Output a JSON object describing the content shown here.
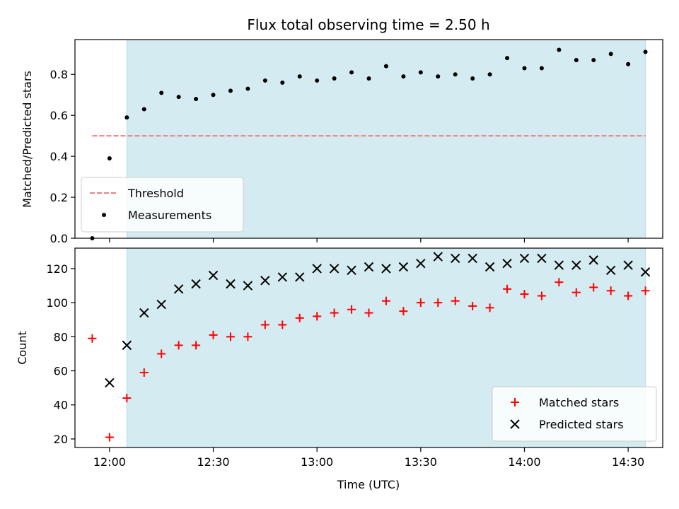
{
  "chart_data": {
    "title": "Flux total observing time = 2.50 h",
    "xlabel": "Time (UTC)",
    "x_type": "time",
    "xlim": [
      "11:50",
      "14:40"
    ],
    "x_ticks": [
      "12:00",
      "12:30",
      "13:00",
      "13:30",
      "14:00",
      "14:30"
    ],
    "observing_window": {
      "start": "12:05",
      "end": "14:35",
      "color": "#d4ebf1"
    },
    "panels": [
      {
        "type": "scatter",
        "ylabel": "Matched/Predicted stars",
        "ylim": [
          0,
          0.97
        ],
        "y_ticks": [
          0.0,
          0.2,
          0.4,
          0.6,
          0.8
        ],
        "y_tick_labels": [
          "0.0",
          "0.2",
          "0.4",
          "0.6",
          "0.8"
        ],
        "legend_position": "lower-left",
        "threshold": {
          "name": "Threshold",
          "value": 0.5,
          "x_range": [
            "11:55",
            "14:35"
          ],
          "color": "#f08080",
          "style": "dashed"
        },
        "series": [
          {
            "name": "Measurements",
            "marker": "dot",
            "color": "#000000",
            "x": [
              "11:55",
              "12:00",
              "12:05",
              "12:10",
              "12:15",
              "12:20",
              "12:25",
              "12:30",
              "12:35",
              "12:40",
              "12:45",
              "12:50",
              "12:55",
              "13:00",
              "13:05",
              "13:10",
              "13:15",
              "13:20",
              "13:25",
              "13:30",
              "13:35",
              "13:40",
              "13:45",
              "13:50",
              "13:55",
              "14:00",
              "14:05",
              "14:10",
              "14:15",
              "14:20",
              "14:25",
              "14:30",
              "14:35"
            ],
            "y": [
              0.0,
              0.39,
              0.59,
              0.63,
              0.71,
              0.69,
              0.68,
              0.7,
              0.72,
              0.73,
              0.77,
              0.76,
              0.79,
              0.77,
              0.78,
              0.81,
              0.78,
              0.84,
              0.79,
              0.81,
              0.79,
              0.8,
              0.78,
              0.8,
              0.88,
              0.83,
              0.83,
              0.92,
              0.87,
              0.87,
              0.9,
              0.85,
              0.91
            ]
          }
        ]
      },
      {
        "type": "scatter",
        "ylabel": "Count",
        "ylim": [
          15,
          132
        ],
        "y_ticks": [
          20,
          40,
          60,
          80,
          100,
          120
        ],
        "y_tick_labels": [
          "20",
          "40",
          "60",
          "80",
          "100",
          "120"
        ],
        "legend_position": "lower-right",
        "series": [
          {
            "name": "Matched stars",
            "marker": "plus",
            "color": "#ff0000",
            "x": [
              "11:55",
              "12:00",
              "12:05",
              "12:10",
              "12:15",
              "12:20",
              "12:25",
              "12:30",
              "12:35",
              "12:40",
              "12:45",
              "12:50",
              "12:55",
              "13:00",
              "13:05",
              "13:10",
              "13:15",
              "13:20",
              "13:25",
              "13:30",
              "13:35",
              "13:40",
              "13:45",
              "13:50",
              "13:55",
              "14:00",
              "14:05",
              "14:10",
              "14:15",
              "14:20",
              "14:25",
              "14:30",
              "14:35"
            ],
            "y": [
              79,
              21,
              44,
              59,
              70,
              75,
              75,
              81,
              80,
              80,
              87,
              87,
              91,
              92,
              94,
              96,
              94,
              101,
              95,
              100,
              100,
              101,
              98,
              97,
              108,
              105,
              104,
              112,
              106,
              109,
              107,
              104,
              107
            ]
          },
          {
            "name": "Predicted stars",
            "marker": "x",
            "color": "#000000",
            "x": [
              "12:00",
              "12:05",
              "12:10",
              "12:15",
              "12:20",
              "12:25",
              "12:30",
              "12:35",
              "12:40",
              "12:45",
              "12:50",
              "12:55",
              "13:00",
              "13:05",
              "13:10",
              "13:15",
              "13:20",
              "13:25",
              "13:30",
              "13:35",
              "13:40",
              "13:45",
              "13:50",
              "13:55",
              "14:00",
              "14:05",
              "14:10",
              "14:15",
              "14:20",
              "14:25",
              "14:30",
              "14:35"
            ],
            "y": [
              53,
              75,
              94,
              99,
              108,
              111,
              116,
              111,
              110,
              113,
              115,
              115,
              120,
              120,
              119,
              121,
              120,
              121,
              123,
              127,
              126,
              126,
              121,
              123,
              126,
              126,
              122,
              122,
              125,
              119,
              122,
              118
            ]
          }
        ]
      }
    ]
  }
}
